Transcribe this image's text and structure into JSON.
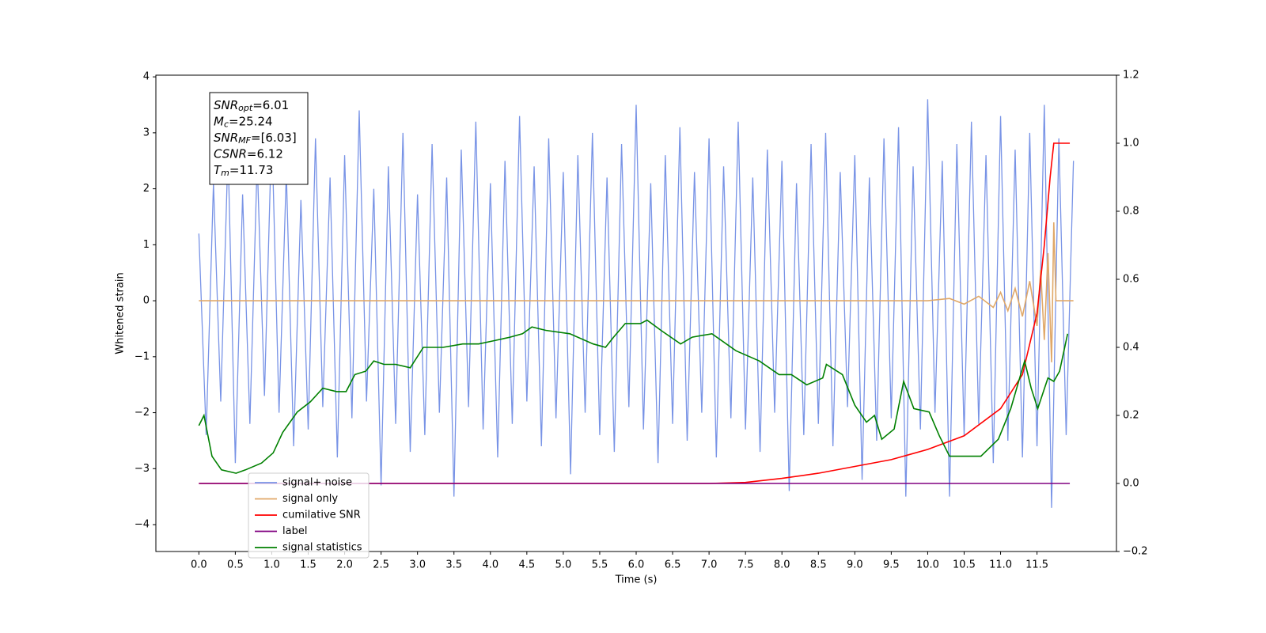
{
  "chart_data": {
    "type": "line",
    "xlabel": "Time (s)",
    "ylabel": "Whitened strain",
    "xlim": [
      -0.59,
      12.59
    ],
    "ylim": [
      -4.48,
      4.03
    ],
    "y2lim": [
      -0.2,
      1.2
    ],
    "xticks": [
      {
        "value": 0,
        "label": "0.0"
      },
      {
        "value": 0.5,
        "label": "0.5"
      },
      {
        "value": 1,
        "label": "1.0"
      },
      {
        "value": 1.5,
        "label": "1.5"
      },
      {
        "value": 2,
        "label": "2.0"
      },
      {
        "value": 2.5,
        "label": "2.5"
      },
      {
        "value": 3,
        "label": "3.0"
      },
      {
        "value": 3.5,
        "label": "3.5"
      },
      {
        "value": 4,
        "label": "4.0"
      },
      {
        "value": 4.5,
        "label": "4.5"
      },
      {
        "value": 5,
        "label": "5.0"
      },
      {
        "value": 5.5,
        "label": "5.5"
      },
      {
        "value": 6,
        "label": "6.0"
      },
      {
        "value": 6.5,
        "label": "6.5"
      },
      {
        "value": 7,
        "label": "7.0"
      },
      {
        "value": 7.5,
        "label": "7.5"
      },
      {
        "value": 8,
        "label": "8.0"
      },
      {
        "value": 8.5,
        "label": "8.5"
      },
      {
        "value": 9,
        "label": "9.0"
      },
      {
        "value": 9.5,
        "label": "9.5"
      },
      {
        "value": 10,
        "label": "10.0"
      },
      {
        "value": 10.5,
        "label": "10.5"
      },
      {
        "value": 11,
        "label": "11.0"
      },
      {
        "value": 11.5,
        "label": "11.5"
      }
    ],
    "yticks": [
      {
        "value": -4,
        "label": "−4"
      },
      {
        "value": -3,
        "label": "−3"
      },
      {
        "value": -2,
        "label": "−2"
      },
      {
        "value": -1,
        "label": "−1"
      },
      0,
      1,
      2,
      3,
      4
    ],
    "y2ticks": [
      {
        "value": -0.2,
        "label": "−0.2"
      },
      {
        "value": 0,
        "label": "0.0"
      },
      0.2,
      0.4,
      0.6,
      0.8,
      {
        "value": 1,
        "label": "1.0"
      },
      1.2
    ],
    "annotation": [
      {
        "base": "SNR",
        "sub": "opt",
        "rest": "=6.01"
      },
      {
        "base": "M",
        "sub": "c",
        "rest": "=25.24"
      },
      {
        "base": "SNR",
        "sub": "MF",
        "rest": "=[6.03]"
      },
      {
        "base": "CSNR",
        "sub": "",
        "rest": "=6.12"
      },
      {
        "base": "T",
        "sub": "m",
        "rest": "=11.73"
      }
    ],
    "series": [
      {
        "name": "signal+ noise",
        "color": "#7893e6",
        "x": [
          0,
          0.1,
          0.2,
          0.3,
          0.4,
          0.5,
          0.6,
          0.7,
          0.8,
          0.9,
          1,
          1.1,
          1.2,
          1.3,
          1.4,
          1.5,
          1.6,
          1.7,
          1.8,
          1.9,
          2,
          2.1,
          2.2,
          2.3,
          2.4,
          2.5,
          2.6,
          2.7,
          2.8,
          2.9,
          3,
          3.1,
          3.2,
          3.3,
          3.4,
          3.5,
          3.6,
          3.7,
          3.8,
          3.9,
          4,
          4.1,
          4.2,
          4.3,
          4.4,
          4.5,
          4.6,
          4.7,
          4.8,
          4.9,
          5,
          5.1,
          5.2,
          5.3,
          5.4,
          5.5,
          5.6,
          5.7,
          5.8,
          5.9,
          6,
          6.1,
          6.2,
          6.3,
          6.4,
          6.5,
          6.6,
          6.7,
          6.8,
          6.9,
          7,
          7.1,
          7.2,
          7.3,
          7.4,
          7.5,
          7.6,
          7.7,
          7.8,
          7.9,
          8,
          8.1,
          8.2,
          8.3,
          8.4,
          8.5,
          8.6,
          8.7,
          8.8,
          8.9,
          9,
          9.1,
          9.2,
          9.3,
          9.4,
          9.5,
          9.6,
          9.7,
          9.8,
          9.9,
          10,
          10.1,
          10.2,
          10.3,
          10.4,
          10.5,
          10.6,
          10.7,
          10.8,
          10.9,
          11,
          11.1,
          11.2,
          11.3,
          11.4,
          11.5,
          11.6,
          11.7,
          11.8,
          11.9,
          12
        ],
        "values": [
          1.2,
          -2.4,
          2.1,
          -1.8,
          2.7,
          -2.9,
          1.9,
          -2.2,
          2.5,
          -1.7,
          3.1,
          -2.0,
          2.3,
          -2.6,
          1.8,
          -2.3,
          2.9,
          -1.9,
          2.2,
          -2.8,
          2.6,
          -2.1,
          3.4,
          -1.8,
          2.0,
          -3.3,
          2.4,
          -2.2,
          3.0,
          -2.7,
          1.9,
          -2.4,
          2.8,
          -2.0,
          2.2,
          -3.5,
          2.7,
          -1.9,
          3.2,
          -2.3,
          2.1,
          -2.8,
          2.5,
          -2.2,
          3.3,
          -1.8,
          2.4,
          -2.6,
          2.9,
          -2.1,
          2.3,
          -3.1,
          2.6,
          -2.0,
          3.0,
          -2.4,
          2.2,
          -2.7,
          2.8,
          -1.9,
          3.5,
          -2.3,
          2.1,
          -2.9,
          2.6,
          -2.2,
          3.1,
          -2.5,
          2.3,
          -2.0,
          2.9,
          -2.8,
          2.4,
          -2.1,
          3.2,
          -2.3,
          2.2,
          -2.7,
          2.7,
          -2.0,
          2.5,
          -3.4,
          2.1,
          -2.4,
          2.8,
          -2.2,
          3.0,
          -2.6,
          2.3,
          -1.9,
          2.6,
          -3.2,
          2.2,
          -2.5,
          2.9,
          -2.1,
          3.1,
          -3.5,
          2.4,
          -2.3,
          3.6,
          -2.0,
          2.5,
          -3.5,
          2.8,
          -2.4,
          3.2,
          -2.2,
          2.6,
          -2.9,
          3.3,
          -2.5,
          2.7,
          -2.8,
          3.0,
          -2.6,
          3.5,
          -3.7,
          2.9,
          -2.4,
          2.5
        ]
      },
      {
        "name": "signal only",
        "color": "#e0a868",
        "x": [
          0,
          10.0,
          10.3,
          10.5,
          10.7,
          10.9,
          11.0,
          11.1,
          11.2,
          11.3,
          11.4,
          11.5,
          11.55,
          11.6,
          11.65,
          11.7,
          11.73,
          11.76,
          12.0
        ],
        "values": [
          0,
          0,
          0.04,
          -0.06,
          0.08,
          -0.12,
          0.15,
          -0.18,
          0.22,
          -0.28,
          0.35,
          -0.45,
          0.55,
          -0.7,
          0.85,
          -1.1,
          1.4,
          0,
          0
        ]
      },
      {
        "name": "cumilative SNR",
        "color": "#ff0000",
        "axis": "y2",
        "x": [
          0,
          7.0,
          7.5,
          8.0,
          8.5,
          9.0,
          9.5,
          10.0,
          10.5,
          11.0,
          11.3,
          11.5,
          11.6,
          11.68,
          11.73,
          11.95
        ],
        "values": [
          0,
          0,
          0.003,
          0.015,
          0.03,
          0.05,
          0.07,
          0.1,
          0.14,
          0.22,
          0.32,
          0.5,
          0.7,
          0.9,
          1.0,
          1.0
        ]
      },
      {
        "name": "label",
        "color": "#800080",
        "axis": "y2",
        "x": [
          0,
          11.95
        ],
        "values": [
          0,
          0
        ]
      },
      {
        "name": "signal statistics",
        "color": "#008000",
        "axis": "y2",
        "x": [
          0,
          0.07,
          0.18,
          0.31,
          0.51,
          0.64,
          0.86,
          1.02,
          1.15,
          1.35,
          1.53,
          1.7,
          1.89,
          2.02,
          2.14,
          2.29,
          2.4,
          2.54,
          2.7,
          2.9,
          3.08,
          3.35,
          3.62,
          3.84,
          4.06,
          4.27,
          4.44,
          4.57,
          4.76,
          5.09,
          5.41,
          5.58,
          5.69,
          5.85,
          6.06,
          6.15,
          6.34,
          6.61,
          6.77,
          7.04,
          7.37,
          7.69,
          7.96,
          8.13,
          8.34,
          8.56,
          8.61,
          8.83,
          9.0,
          9.16,
          9.27,
          9.37,
          9.54,
          9.67,
          9.81,
          10.02,
          10.16,
          10.3,
          10.46,
          10.73,
          10.97,
          11.14,
          11.33,
          11.42,
          11.51,
          11.65,
          11.73,
          11.81,
          11.92
        ],
        "values": [
          0.17,
          0.2,
          0.08,
          0.04,
          0.03,
          0.04,
          0.06,
          0.09,
          0.15,
          0.21,
          0.24,
          0.28,
          0.27,
          0.27,
          0.32,
          0.33,
          0.36,
          0.35,
          0.35,
          0.34,
          0.4,
          0.4,
          0.41,
          0.41,
          0.42,
          0.43,
          0.44,
          0.46,
          0.45,
          0.44,
          0.41,
          0.4,
          0.43,
          0.47,
          0.47,
          0.48,
          0.45,
          0.41,
          0.43,
          0.44,
          0.39,
          0.36,
          0.32,
          0.32,
          0.29,
          0.31,
          0.35,
          0.32,
          0.23,
          0.18,
          0.2,
          0.13,
          0.16,
          0.3,
          0.22,
          0.21,
          0.14,
          0.08,
          0.08,
          0.08,
          0.13,
          0.22,
          0.36,
          0.28,
          0.22,
          0.31,
          0.3,
          0.33,
          0.44
        ]
      }
    ]
  }
}
